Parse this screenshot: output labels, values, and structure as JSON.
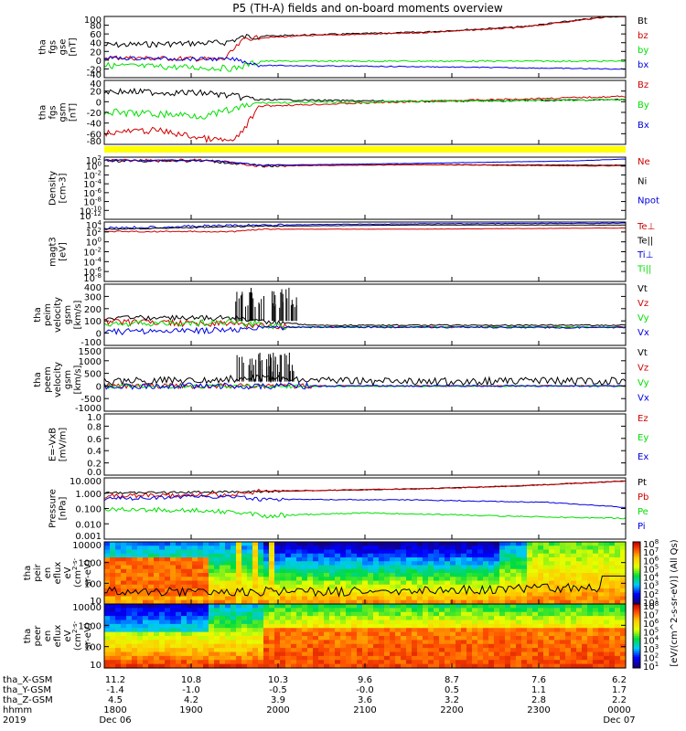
{
  "title": "P5 (TH-A) fields and on-board moments overview",
  "colors": {
    "black": "#000000",
    "red": "#d00000",
    "green": "#00e000",
    "blue": "#0000e0",
    "yellow": "#ffff00"
  },
  "panels": [
    {
      "id": "fgs-gse",
      "ylabel": [
        "tha",
        "fgs",
        "gse",
        "[nT]"
      ],
      "ticks": [
        "100",
        "80",
        "60",
        "40",
        "20",
        "0",
        "-20",
        "-40"
      ],
      "legend": [
        {
          "t": "Bt",
          "c": "black"
        },
        {
          "t": "bz",
          "c": "red"
        },
        {
          "t": "by",
          "c": "green"
        },
        {
          "t": "bx",
          "c": "blue"
        }
      ]
    },
    {
      "id": "fgs-gsm",
      "ylabel": [
        "tha",
        "fgs",
        "gsm",
        "[nT]"
      ],
      "ticks": [
        "40",
        "20",
        "0",
        "-20",
        "-40",
        "-60",
        "-80"
      ],
      "legend": [
        {
          "t": "Bz",
          "c": "red"
        },
        {
          "t": "By",
          "c": "green"
        },
        {
          "t": "Bx",
          "c": "blue"
        }
      ]
    },
    {
      "id": "density",
      "ylabel": [
        "Density",
        "[cm-3]"
      ],
      "ticks": [
        "10^2",
        "10^0",
        "10^-2",
        "10^-4",
        "10^-6",
        "10^-8",
        "10^-10",
        "10^-12"
      ],
      "legend": [
        {
          "t": "Ne",
          "c": "red"
        },
        {
          "t": "Ni",
          "c": "black"
        },
        {
          "t": "Npot",
          "c": "blue"
        }
      ]
    },
    {
      "id": "temp",
      "ylabel": [
        "magt3",
        "[eV]"
      ],
      "ticks": [
        "10^4",
        "10^2",
        "10^0",
        "10^-2",
        "10^-4",
        "10^-6",
        "10^-8"
      ],
      "legend": [
        {
          "t": "Te⊥",
          "c": "red"
        },
        {
          "t": "Te||",
          "c": "black"
        },
        {
          "t": "Ti⊥",
          "c": "blue"
        },
        {
          "t": "Ti||",
          "c": "green"
        }
      ]
    },
    {
      "id": "peim-vel",
      "ylabel": [
        "tha",
        "peim",
        "velocity",
        "gsm",
        "[km/s]"
      ],
      "ticks": [
        "400",
        "300",
        "200",
        "100",
        "0",
        "-100"
      ],
      "legend": [
        {
          "t": "Vt",
          "c": "black"
        },
        {
          "t": "Vz",
          "c": "red"
        },
        {
          "t": "Vy",
          "c": "green"
        },
        {
          "t": "Vx",
          "c": "blue"
        }
      ]
    },
    {
      "id": "peem-vel",
      "ylabel": [
        "tha",
        "peem",
        "velocity",
        "gsm",
        "[km/s]"
      ],
      "ticks": [
        "1500",
        "1000",
        "500",
        "0",
        "-500",
        "-1000"
      ],
      "legend": [
        {
          "t": "Vt",
          "c": "black"
        },
        {
          "t": "Vz",
          "c": "red"
        },
        {
          "t": "Vy",
          "c": "green"
        },
        {
          "t": "Vx",
          "c": "blue"
        }
      ]
    },
    {
      "id": "efield",
      "ylabel": [
        "E=-VxB",
        "[mV/m]"
      ],
      "ticks": [
        "1.0",
        "0.8",
        "0.6",
        "0.4",
        "0.2",
        "0.0"
      ],
      "legend": [
        {
          "t": "Ez",
          "c": "red"
        },
        {
          "t": "Ey",
          "c": "green"
        },
        {
          "t": "Ex",
          "c": "blue"
        }
      ]
    },
    {
      "id": "pressure",
      "ylabel": [
        "Pressure",
        "[nPa]"
      ],
      "ticks": [
        "10.000",
        "1.000",
        "0.100",
        "0.010",
        "0.001"
      ],
      "legend": [
        {
          "t": "Pt",
          "c": "black"
        },
        {
          "t": "Pb",
          "c": "red"
        },
        {
          "t": "Pe",
          "c": "green"
        },
        {
          "t": "Pi",
          "c": "blue"
        }
      ]
    },
    {
      "id": "peir-spec",
      "ylabel": [
        "tha",
        "peir",
        "en",
        "eflux",
        "eV",
        "(cm^2-s-",
        "sr-eV)"
      ],
      "ticks": [
        "10000",
        "1000",
        "100",
        "10"
      ]
    },
    {
      "id": "peer-spec",
      "ylabel": [
        "tha",
        "peer",
        "en",
        "eflux",
        "eV",
        "(cm^2-s-",
        "sr-eV)"
      ],
      "ticks": [
        "10000",
        "1000",
        "100",
        "10"
      ]
    }
  ],
  "colorbar": {
    "label": "[eV/(cm^2-s-sr-eV)] (All Qs)",
    "top_ticks": [
      "10^8",
      "10^7",
      "10^6",
      "10^5",
      "10^4",
      "10^3",
      "10^2",
      "10^1"
    ],
    "bottom_ticks": [
      "10^8",
      "10^7",
      "10^6",
      "10^5",
      "10^4",
      "10^3",
      "10^2",
      "10^1"
    ]
  },
  "orbit": {
    "labels": [
      "tha_X-GSM",
      "tha_Y-GSM",
      "tha_Z-GSM",
      "hhmm",
      "2019"
    ],
    "columns": [
      [
        "11.2",
        "-1.4",
        "4.5",
        "1800",
        "Dec 06"
      ],
      [
        "10.8",
        "-1.0",
        "4.2",
        "1900",
        ""
      ],
      [
        "10.3",
        "-0.5",
        "3.9",
        "2000",
        ""
      ],
      [
        "9.6",
        "-0.0",
        "3.6",
        "2100",
        ""
      ],
      [
        "8.7",
        "0.5",
        "3.2",
        "2200",
        ""
      ],
      [
        "7.6",
        "1.1",
        "2.8",
        "2300",
        ""
      ],
      [
        "6.2",
        "1.7",
        "2.2",
        "0000",
        "Dec 07"
      ]
    ]
  },
  "chart_data": [
    {
      "type": "line",
      "title": "P5 (TH-A) fields and on-board moments overview",
      "ylabel": "tha fgs gse [nT]",
      "ylim": [
        -40,
        100
      ],
      "x": [
        "1800",
        "1900",
        "2000",
        "2100",
        "2200",
        "2300",
        "0000"
      ],
      "series": [
        {
          "name": "Bt",
          "values": [
            28,
            35,
            48,
            55,
            68,
            82,
            100
          ]
        },
        {
          "name": "bz",
          "values": [
            0,
            5,
            48,
            55,
            68,
            82,
            100
          ]
        },
        {
          "name": "by",
          "values": [
            -18,
            -15,
            5,
            5,
            3,
            5,
            5
          ]
        },
        {
          "name": "bx",
          "values": [
            5,
            0,
            -10,
            -10,
            -12,
            -15,
            -15
          ]
        }
      ]
    },
    {
      "type": "line",
      "ylabel": "tha fgs gsm [nT]",
      "ylim": [
        -80,
        40
      ],
      "x": [
        "1800",
        "1900",
        "2000",
        "2100",
        "2200",
        "2300",
        "0000"
      ],
      "series": [
        {
          "name": "Bz",
          "values": [
            -45,
            -70,
            -10,
            -5,
            0,
            5,
            10
          ]
        },
        {
          "name": "By",
          "values": [
            -15,
            -20,
            -5,
            0,
            0,
            3,
            5
          ]
        },
        {
          "name": "Bx",
          "values": [
            -20,
            -25,
            -5,
            0,
            0,
            5,
            8
          ]
        }
      ]
    },
    {
      "type": "line",
      "ylabel": "Density [cm-3]",
      "yscale": "log",
      "x": [
        "1800",
        "1900",
        "2000",
        "2100",
        "2200",
        "2300",
        "0000"
      ],
      "series": [
        {
          "name": "Ne",
          "values": [
            1,
            1,
            0.3,
            0.3,
            0.3,
            0.3,
            0.2
          ]
        },
        {
          "name": "Ni",
          "values": [
            1,
            1,
            0.3,
            0.3,
            0.3,
            0.3,
            0.3
          ]
        },
        {
          "name": "Npot",
          "values": [
            1,
            1,
            0.4,
            0.5,
            0.6,
            1,
            1.5
          ]
        }
      ]
    },
    {
      "type": "line",
      "ylabel": "magt3 [eV]",
      "yscale": "log",
      "x": [
        "1800",
        "1900",
        "2000",
        "2100",
        "2200",
        "2300",
        "0000"
      ],
      "series": [
        {
          "name": "Te⊥",
          "values": [
            300,
            300,
            800,
            800,
            800,
            800,
            1000
          ]
        },
        {
          "name": "Ti⊥",
          "values": [
            2000,
            2000,
            5000,
            5000,
            5000,
            5000,
            5000
          ]
        }
      ]
    },
    {
      "type": "line",
      "ylabel": "tha peim velocity gsm [km/s]",
      "ylim": [
        -100,
        400
      ],
      "x": [
        "1800",
        "1900",
        "2000",
        "2100",
        "2200",
        "2300",
        "0000"
      ],
      "series": [
        {
          "name": "Vt",
          "values": [
            80,
            80,
            50,
            20,
            20,
            20,
            20
          ]
        },
        {
          "name": "Vz",
          "values": [
            30,
            20,
            0,
            0,
            0,
            0,
            0
          ]
        },
        {
          "name": "Vy",
          "values": [
            20,
            40,
            0,
            0,
            0,
            0,
            0
          ]
        },
        {
          "name": "Vx",
          "values": [
            -30,
            -20,
            0,
            0,
            0,
            0,
            0
          ]
        }
      ]
    },
    {
      "type": "line",
      "ylabel": "tha peem velocity gsm [km/s]",
      "ylim": [
        -1000,
        1500
      ],
      "x": [
        "1800",
        "1900",
        "2000",
        "2100",
        "2200",
        "2300",
        "0000"
      ],
      "series": [
        {
          "name": "Vt",
          "values": [
            100,
            200,
            100,
            50,
            50,
            50,
            50
          ]
        }
      ]
    },
    {
      "type": "line",
      "ylabel": "E=-VxB [mV/m]",
      "ylim": [
        0,
        1
      ],
      "series": []
    },
    {
      "type": "line",
      "ylabel": "Pressure [nPa]",
      "yscale": "log",
      "ylim": [
        0.001,
        10
      ],
      "x": [
        "1800",
        "1900",
        "2000",
        "2100",
        "2200",
        "2300",
        "0000"
      ],
      "series": [
        {
          "name": "Pt",
          "values": [
            1,
            1,
            1,
            1.2,
            1.5,
            2,
            4
          ]
        },
        {
          "name": "Pb",
          "values": [
            0.8,
            0.8,
            1,
            1.2,
            1.5,
            2,
            4
          ]
        },
        {
          "name": "Pe",
          "values": [
            0.06,
            0.03,
            0.05,
            0.04,
            0.03,
            0.03,
            0.02
          ]
        },
        {
          "name": "Pi",
          "values": [
            0.6,
            0.5,
            0.3,
            0.3,
            0.3,
            0.2,
            0.08
          ]
        }
      ]
    },
    {
      "type": "heatmap",
      "ylabel": "tha peir en eflux",
      "yscale": "log",
      "ylim": [
        5,
        30000
      ],
      "colorbar": "10^1 - 10^8"
    },
    {
      "type": "heatmap",
      "ylabel": "tha peer en eflux",
      "yscale": "log",
      "ylim": [
        5,
        30000
      ],
      "colorbar": "10^1 - 10^8"
    }
  ]
}
